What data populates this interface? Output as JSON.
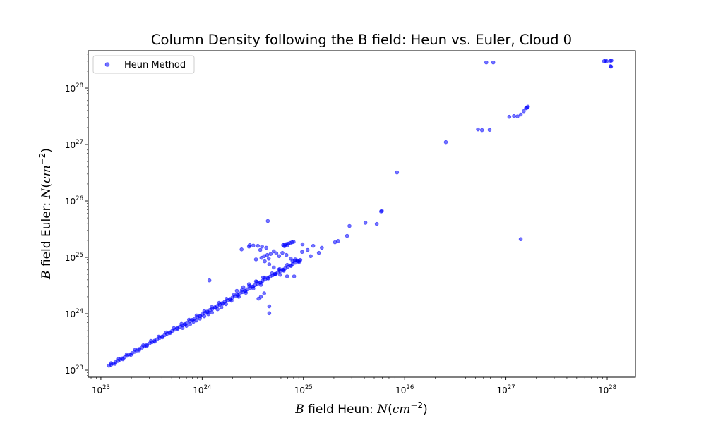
{
  "chart_data": {
    "type": "scatter",
    "title": "Column Density following the B field: Heun vs. Euler, Cloud 0",
    "xlabel": {
      "var": "B",
      "text": " field Heun: ",
      "sym": "N",
      "unit_open": "(",
      "unit": "cm",
      "exp": "−2",
      "unit_close": ")"
    },
    "ylabel": {
      "var": "B",
      "text": " field Euler: ",
      "sym": "N",
      "unit_open": "(",
      "unit": "cm",
      "exp": "−2",
      "unit_close": ")"
    },
    "x_scale": "log",
    "y_scale": "log",
    "xlim": [
      7.5e+22,
      1.9e+28
    ],
    "ylim": [
      7.5e+22,
      4.6e+28
    ],
    "grid": false,
    "legend_position": "top-left",
    "x_ticks": [
      {
        "base": "10",
        "exp": "23",
        "value": 1e+23
      },
      {
        "base": "10",
        "exp": "24",
        "value": 1e+24
      },
      {
        "base": "10",
        "exp": "25",
        "value": 1e+25
      },
      {
        "base": "10",
        "exp": "26",
        "value": 1e+26
      },
      {
        "base": "10",
        "exp": "27",
        "value": 1e+27
      },
      {
        "base": "10",
        "exp": "28",
        "value": 1e+28
      }
    ],
    "y_ticks": [
      {
        "base": "10",
        "exp": "23",
        "value": 1e+23
      },
      {
        "base": "10",
        "exp": "24",
        "value": 1e+24
      },
      {
        "base": "10",
        "exp": "25",
        "value": 1e+25
      },
      {
        "base": "10",
        "exp": "26",
        "value": 1e+26
      },
      {
        "base": "10",
        "exp": "27",
        "value": 1e+27
      },
      {
        "base": "10",
        "exp": "28",
        "value": 1e+28
      }
    ],
    "series": [
      {
        "name": "Heun Method",
        "color": "#0000ff",
        "alpha": 0.55,
        "points": [
          [
            1.2e+23,
            1.2e+23
          ],
          [
            1.26e+23,
            1.25e+23
          ],
          [
            1.32e+23,
            1.31e+23
          ],
          [
            1.4e+23,
            1.39e+23
          ],
          [
            1.48e+23,
            1.46e+23
          ],
          [
            1.55e+23,
            1.54e+23
          ],
          [
            1.63e+23,
            1.62e+23
          ],
          [
            1.72e+23,
            1.7e+23
          ],
          [
            1.82e+23,
            1.8e+23
          ],
          [
            1.92e+23,
            1.9e+23
          ],
          [
            2.03e+23,
            2e+23
          ],
          [
            2.15e+23,
            2.12e+23
          ],
          [
            2.27e+23,
            2.24e+23
          ],
          [
            2.4e+23,
            2.37e+23
          ],
          [
            2.55e+23,
            2.51e+23
          ],
          [
            2.7e+23,
            2.66e+23
          ],
          [
            2.85e+23,
            2.8e+23
          ],
          [
            3.02e+23,
            2.97e+23
          ],
          [
            3.2e+23,
            3.14e+23
          ],
          [
            3.38e+23,
            3.32e+23
          ],
          [
            3.58e+23,
            3.52e+23
          ],
          [
            3.8e+23,
            3.73e+23
          ],
          [
            4.02e+23,
            3.94e+23
          ],
          [
            4.25e+23,
            4.17e+23
          ],
          [
            4.5e+23,
            4.41e+23
          ],
          [
            4.77e+23,
            4.67e+23
          ],
          [
            5.05e+23,
            4.94e+23
          ],
          [
            5.35e+23,
            5.23e+23
          ],
          [
            5.66e+23,
            5.54e+23
          ],
          [
            6e+23,
            5.86e+23
          ],
          [
            6.35e+23,
            6.2e+23
          ],
          [
            6.72e+23,
            6.56e+23
          ],
          [
            7.12e+23,
            6.95e+23
          ],
          [
            7.54e+23,
            7.36e+23
          ],
          [
            7.98e+23,
            7.78e+23
          ],
          [
            8.45e+23,
            8.24e+23
          ],
          [
            8.95e+23,
            8.72e+23
          ],
          [
            9.48e+23,
            9.23e+23
          ],
          [
            1e+24,
            9.75e+23
          ],
          [
            1.06e+24,
            1.03e+24
          ],
          [
            1.12e+24,
            1.09e+24
          ],
          [
            1.19e+24,
            1.16e+24
          ],
          [
            1.26e+24,
            1.22e+24
          ],
          [
            1.33e+24,
            1.3e+24
          ],
          [
            1.41e+24,
            1.37e+24
          ],
          [
            1.49e+24,
            1.45e+24
          ],
          [
            1.58e+24,
            1.54e+24
          ],
          [
            1.67e+24,
            1.63e+24
          ],
          [
            1.77e+24,
            1.72e+24
          ],
          [
            1.88e+24,
            1.82e+24
          ],
          [
            1.99e+24,
            1.93e+24
          ],
          [
            2.1e+24,
            2.04e+24
          ],
          [
            2.23e+24,
            2.16e+24
          ],
          [
            2.36e+24,
            2.29e+24
          ],
          [
            2.5e+24,
            2.42e+24
          ],
          [
            2.65e+24,
            2.57e+24
          ],
          [
            2.8e+24,
            2.72e+24
          ],
          [
            2.97e+24,
            2.88e+24
          ],
          [
            3.14e+24,
            3.04e+24
          ],
          [
            3.33e+24,
            3.22e+24
          ],
          [
            3.52e+24,
            3.41e+24
          ],
          [
            3.73e+24,
            3.61e+24
          ],
          [
            3.95e+24,
            3.83e+24
          ],
          [
            4.18e+24,
            4.05e+24
          ],
          [
            4.43e+24,
            4.29e+24
          ],
          [
            4.69e+24,
            4.54e+24
          ],
          [
            4.96e+24,
            4.81e+24
          ],
          [
            5.26e+24,
            5.09e+24
          ],
          [
            5.57e+24,
            5.39e+24
          ],
          [
            5.89e+24,
            5.71e+24
          ],
          [
            6.24e+24,
            6.04e+24
          ],
          [
            6.61e+24,
            6.4e+24
          ],
          [
            7e+24,
            6.77e+24
          ],
          [
            7.41e+24,
            7.17e+24
          ],
          [
            7.85e+24,
            7.59e+24
          ],
          [
            8.31e+24,
            8.04e+24
          ],
          [
            8.8e+24,
            8.51e+24
          ],
          [
            9.32e+24,
            9.01e+24
          ],
          [
            1.26e+23,
            1.33e+23
          ],
          [
            1.38e+23,
            1.3e+23
          ],
          [
            1.5e+23,
            1.58e+23
          ],
          [
            1.65e+23,
            1.56e+23
          ],
          [
            1.8e+23,
            1.9e+23
          ],
          [
            1.98e+23,
            1.87e+23
          ],
          [
            2.18e+23,
            2.3e+23
          ],
          [
            2.38e+23,
            2.25e+23
          ],
          [
            2.62e+23,
            2.76e+23
          ],
          [
            2.85e+23,
            2.7e+23
          ],
          [
            3.12e+23,
            3.3e+23
          ],
          [
            3.4e+23,
            3.2e+23
          ],
          [
            3.72e+23,
            3.93e+23
          ],
          [
            4.05e+23,
            3.82e+23
          ],
          [
            4.42e+23,
            4.66e+23
          ],
          [
            4.82e+23,
            4.55e+23
          ],
          [
            5.25e+23,
            5.55e+23
          ],
          [
            5.72e+23,
            5.4e+23
          ],
          [
            6.25e+23,
            6.6e+23
          ],
          [
            6.8e+23,
            6.42e+23
          ],
          [
            7.42e+23,
            7.85e+23
          ],
          [
            8.1e+23,
            7.65e+23
          ],
          [
            8.82e+23,
            9.32e+23
          ],
          [
            9.6e+23,
            9.05e+23
          ],
          [
            1.05e+24,
            1.11e+24
          ],
          [
            1.14e+24,
            1.07e+24
          ],
          [
            1.24e+24,
            1.31e+24
          ],
          [
            1.35e+24,
            1.27e+24
          ],
          [
            1.47e+24,
            1.56e+24
          ],
          [
            1.6e+24,
            1.5e+24
          ],
          [
            1.74e+24,
            1.84e+24
          ],
          [
            1.9e+24,
            1.78e+24
          ],
          [
            2.07e+24,
            2.19e+24
          ],
          [
            2.26e+24,
            2.12e+24
          ],
          [
            2.46e+24,
            2.6e+24
          ],
          [
            2.68e+24,
            2.52e+24
          ],
          [
            2.92e+24,
            3.1e+24
          ],
          [
            3.18e+24,
            3e+24
          ],
          [
            3.47e+24,
            3.68e+24
          ],
          [
            3.78e+24,
            3.55e+24
          ],
          [
            4.12e+24,
            4.38e+24
          ],
          [
            4.49e+24,
            4.22e+24
          ],
          [
            4.9e+24,
            5.2e+24
          ],
          [
            5.34e+24,
            5e+24
          ],
          [
            5.82e+24,
            6.2e+24
          ],
          [
            6.35e+24,
            5.95e+24
          ],
          [
            6.92e+24,
            7.35e+24
          ],
          [
            7.55e+24,
            7.05e+24
          ],
          [
            8.2e+24,
            8.75e+24
          ],
          [
            8.95e+24,
            8.35e+24
          ],
          [
            6.4e+23,
            5.6e+23
          ],
          [
            7e+23,
            6.1e+23
          ],
          [
            7.6e+23,
            6.5e+23
          ],
          [
            8.2e+23,
            7.2e+23
          ],
          [
            8.8e+23,
            7.6e+23
          ],
          [
            9.5e+23,
            8.2e+23
          ],
          [
            1.05e+24,
            9e+23
          ],
          [
            1.15e+24,
            9.8e+23
          ],
          [
            1.25e+24,
            1.05e+24
          ],
          [
            1.42e+24,
            1.2e+24
          ],
          [
            1.55e+24,
            1.3e+24
          ],
          [
            1.72e+24,
            1.48e+24
          ],
          [
            1.95e+24,
            1.7e+24
          ],
          [
            2.3e+24,
            2e+24
          ],
          [
            2.7e+24,
            2.35e+24
          ],
          [
            3.2e+24,
            2.8e+24
          ],
          [
            3.8e+24,
            3.25e+24
          ],
          [
            2.2e+24,
            2.55e+24
          ],
          [
            2.55e+24,
            2.95e+24
          ],
          [
            2.9e+24,
            3.35e+24
          ],
          [
            3.4e+24,
            3.75e+24
          ],
          [
            4e+24,
            4.4e+24
          ],
          [
            1.18e+24,
            3.9e+24
          ],
          [
            2.45e+24,
            1.38e+25
          ],
          [
            2.9e+24,
            1.55e+25
          ],
          [
            3.2e+24,
            1.62e+25
          ],
          [
            3.55e+24,
            1.6e+25
          ],
          [
            3.9e+24,
            1.55e+25
          ],
          [
            4.3e+24,
            1.48e+25
          ],
          [
            4.45e+24,
            4.4e+25
          ],
          [
            2.95e+24,
            1.65e+25
          ],
          [
            3.75e+24,
            1.35e+25
          ],
          [
            3.4e+24,
            9.2e+24
          ],
          [
            3.85e+24,
            9.8e+24
          ],
          [
            4.1e+24,
            1.05e+25
          ],
          [
            4.4e+24,
            1.1e+25
          ],
          [
            4.55e+24,
            9.5e+24
          ],
          [
            4.75e+24,
            1.15e+25
          ],
          [
            5.1e+24,
            1.28e+25
          ],
          [
            5.4e+24,
            1.18e+25
          ],
          [
            5.75e+24,
            1.05e+25
          ],
          [
            6.3e+24,
            1.65e+25
          ],
          [
            6.55e+24,
            1.68e+25
          ],
          [
            6.8e+24,
            1.72e+25
          ],
          [
            7.1e+24,
            1.75e+25
          ],
          [
            7.4e+24,
            1.8e+25
          ],
          [
            7.7e+24,
            1.85e+25
          ],
          [
            8e+24,
            1.88e+25
          ],
          [
            6.5e+24,
            1.58e+25
          ],
          [
            6.9e+24,
            1.62e+25
          ],
          [
            6.2e+24,
            1.2e+25
          ],
          [
            6.8e+24,
            1.1e+25
          ],
          [
            7.5e+24,
            9.5e+24
          ],
          [
            7.8e+24,
            8.5e+24
          ],
          [
            8.3e+24,
            9.2e+24
          ],
          [
            8.7e+24,
            8.8e+24
          ],
          [
            9.2e+24,
            8.4e+24
          ],
          [
            8.1e+24,
            4.6e+24
          ],
          [
            9.7e+24,
            1.25e+25
          ],
          [
            9.8e+24,
            1.7e+25
          ],
          [
            1.1e+25,
            1.35e+25
          ],
          [
            1.18e+25,
            1.05e+25
          ],
          [
            1.25e+25,
            1.6e+25
          ],
          [
            1.42e+25,
            1.2e+25
          ],
          [
            1.52e+25,
            1.48e+25
          ],
          [
            4.15e+24,
            8.5e+24
          ],
          [
            4.6e+24,
            7.5e+24
          ],
          [
            5.1e+24,
            6.6e+24
          ],
          [
            5.7e+24,
            6e+24
          ],
          [
            6.4e+24,
            5.8e+24
          ],
          [
            4.6e+24,
            1.35e+24
          ],
          [
            4.6e+24,
            1.02e+24
          ],
          [
            3.6e+24,
            1.85e+24
          ],
          [
            3.8e+24,
            2e+24
          ],
          [
            4.1e+24,
            2.3e+24
          ],
          [
            5.2e+24,
            5e+24
          ],
          [
            5.9e+24,
            4.9e+24
          ],
          [
            6.9e+24,
            4.6e+24
          ],
          [
            2.05e+25,
            1.85e+25
          ],
          [
            2.2e+25,
            1.95e+25
          ],
          [
            2.7e+25,
            2.4e+25
          ],
          [
            2.85e+25,
            3.6e+25
          ],
          [
            4.1e+25,
            4.1e+25
          ],
          [
            5.3e+25,
            3.9e+25
          ],
          [
            5.85e+25,
            6.5e+25
          ],
          [
            5.95e+25,
            6.7e+25
          ],
          [
            8.4e+25,
            3.2e+26
          ],
          [
            2.55e+26,
            1.1e+27
          ],
          [
            5.3e+26,
            1.85e+27
          ],
          [
            5.8e+26,
            1.8e+27
          ],
          [
            6.9e+26,
            1.82e+27
          ],
          [
            6.4e+26,
            2.85e+28
          ],
          [
            7.5e+26,
            2.85e+28
          ],
          [
            1.4e+27,
            2.1e+25
          ],
          [
            1.08e+27,
            3.1e+27
          ],
          [
            1.2e+27,
            3.2e+27
          ],
          [
            1.3e+27,
            3.15e+27
          ],
          [
            1.4e+27,
            3.4e+27
          ],
          [
            1.5e+27,
            3.9e+27
          ],
          [
            1.58e+27,
            4.4e+27
          ],
          [
            1.62e+27,
            4.5e+27
          ],
          [
            1.65e+27,
            4.7e+27
          ],
          [
            9.3e+27,
            3e+28
          ],
          [
            9.6e+27,
            3.05e+28
          ],
          [
            9.9e+27,
            3e+28
          ],
          [
            1.08e+28,
            3.05e+28
          ],
          [
            1.1e+28,
            3.08e+28
          ],
          [
            1.08e+28,
            2.45e+28
          ],
          [
            1.09e+28,
            2.4e+28
          ]
        ]
      }
    ]
  }
}
